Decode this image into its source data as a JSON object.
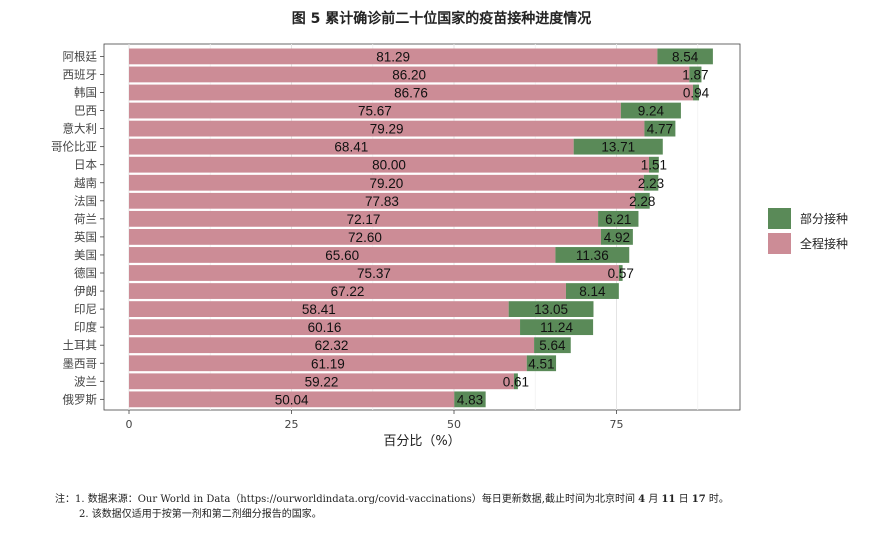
{
  "chart_data": {
    "type": "bar",
    "orientation": "horizontal",
    "stacked": true,
    "title": "图 5  累计确诊前二十位国家的疫苗接种进度情况",
    "xlabel": "百分比（%）",
    "ylabel": "",
    "xlim": [
      0,
      90
    ],
    "xticks": [
      0,
      25,
      50,
      75
    ],
    "grid": true,
    "legend_position": "right",
    "categories": [
      "阿根廷",
      "西班牙",
      "韩国",
      "巴西",
      "意大利",
      "哥伦比亚",
      "日本",
      "越南",
      "法国",
      "荷兰",
      "英国",
      "美国",
      "德国",
      "伊朗",
      "印尼",
      "印度",
      "土耳其",
      "墨西哥",
      "波兰",
      "俄罗斯"
    ],
    "series": [
      {
        "name": "全程接种",
        "color": "#cc8c96",
        "values": [
          81.29,
          86.2,
          86.76,
          75.67,
          79.29,
          68.41,
          80.0,
          79.2,
          77.83,
          72.17,
          72.6,
          65.6,
          75.37,
          67.22,
          58.41,
          60.16,
          62.32,
          61.19,
          59.22,
          50.04
        ]
      },
      {
        "name": "部分接种",
        "color": "#5a8a58",
        "values": [
          8.54,
          1.87,
          0.94,
          9.24,
          4.77,
          13.71,
          1.51,
          2.23,
          2.28,
          6.21,
          4.92,
          11.36,
          0.57,
          8.14,
          13.05,
          11.24,
          5.64,
          4.51,
          0.61,
          4.83
        ]
      }
    ],
    "legend_order": [
      "部分接种",
      "全程接种"
    ]
  },
  "notes": {
    "line1_prefix": "注：1. 数据来源：",
    "line1_source": "Our World in Data（https://ourworldindata.org/covid-vaccinations）",
    "line1_mid": "每日更新数据,截止时间为北京时间 ",
    "month": "4",
    "month_unit": " 月 ",
    "day": "11",
    "day_unit": " 日 ",
    "hour": "17",
    "hour_unit": " 时。",
    "line2": "2. 该数据仅适用于按第一剂和第二剂细分报告的国家。"
  }
}
